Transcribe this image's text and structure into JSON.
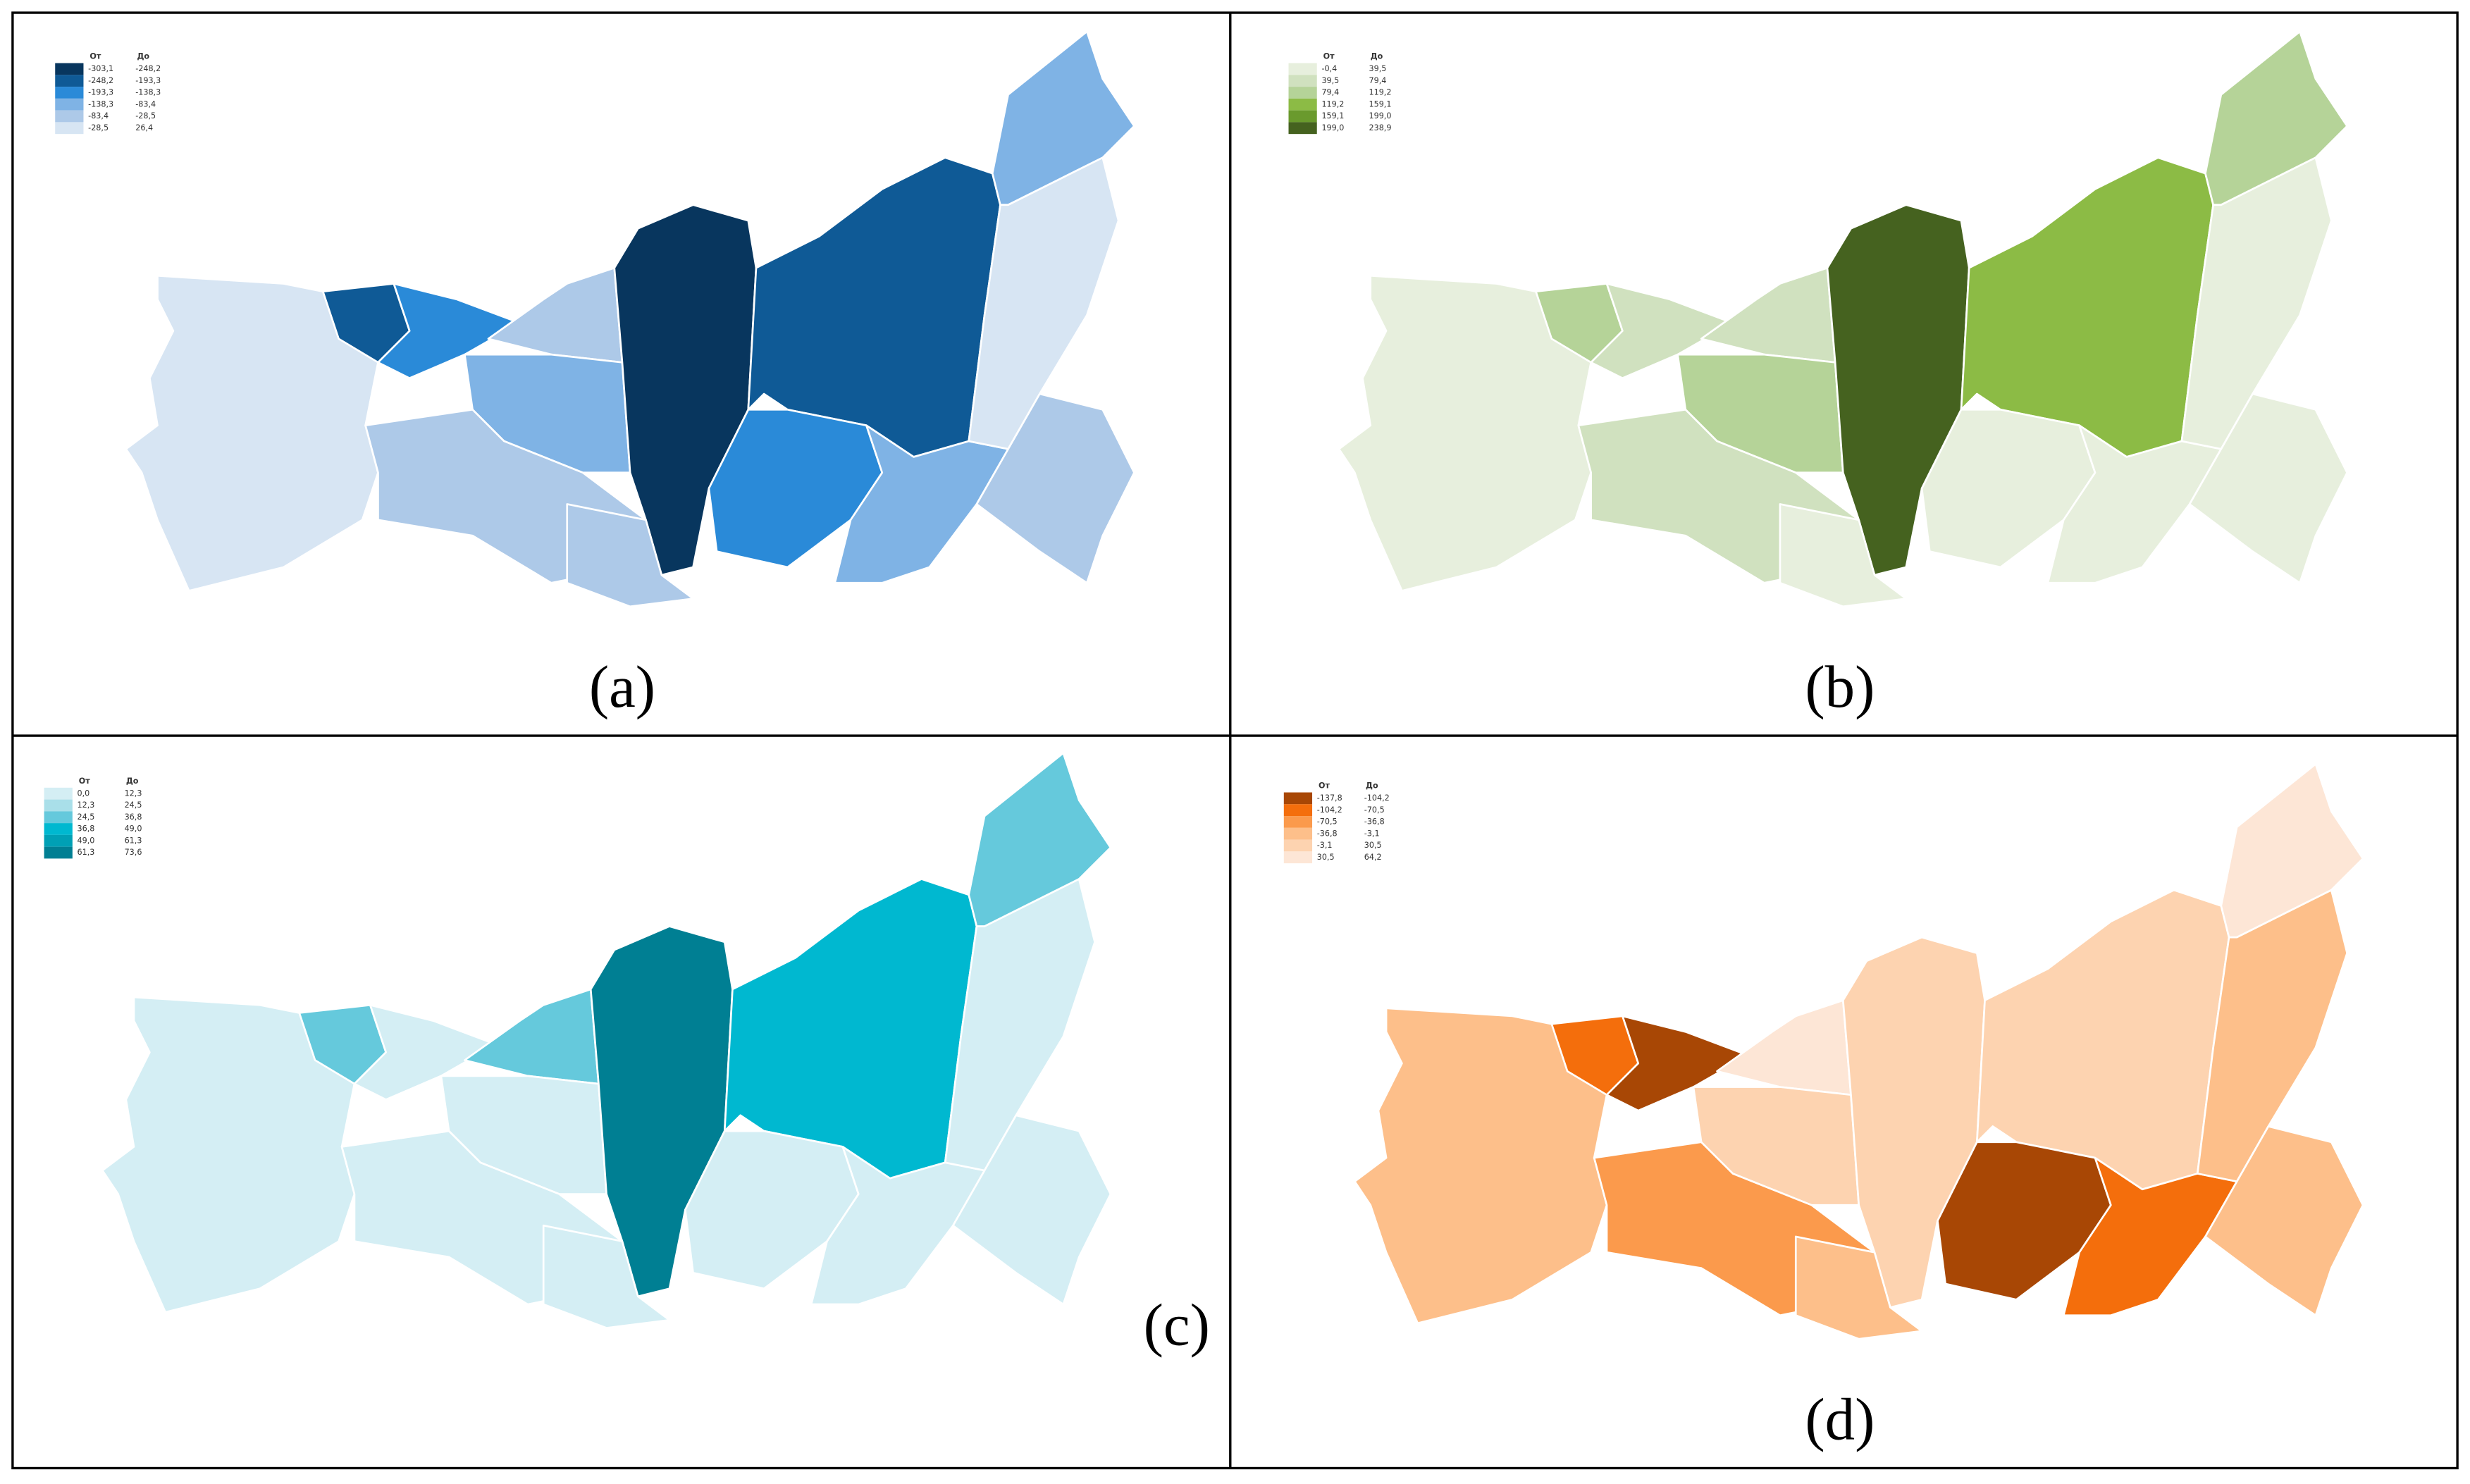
{
  "panels": [
    {
      "label": "(a)",
      "legend": {
        "headers": [
          "От",
          "До"
        ],
        "rows": [
          {
            "from": "-303,1",
            "to": "-248,2",
            "color": "#08365e"
          },
          {
            "from": "-248,2",
            "to": "-193,3",
            "color": "#0f5a96"
          },
          {
            "from": "-193,3",
            "to": "-138,3",
            "color": "#2a8ad8"
          },
          {
            "from": "-138,3",
            "to": "-83,4",
            "color": "#7fb3e5"
          },
          {
            "from": "-83,4",
            "to": "-28,5",
            "color": "#adc9e8"
          },
          {
            "from": "-28,5",
            "to": "26,4",
            "color": "#d7e5f3"
          }
        ]
      }
    },
    {
      "label": "(b)",
      "legend": {
        "headers": [
          "От",
          "До"
        ],
        "rows": [
          {
            "from": "-0,4",
            "to": "39,5",
            "color": "#e7efdd"
          },
          {
            "from": "39,5",
            "to": "79,4",
            "color": "#d0e1bf"
          },
          {
            "from": "79,4",
            "to": "119,2",
            "color": "#b5d398"
          },
          {
            "from": "119,2",
            "to": "159,1",
            "color": "#8cbb45"
          },
          {
            "from": "159,1",
            "to": "199,0",
            "color": "#6a9a2d"
          },
          {
            "from": "199,0",
            "to": "238,9",
            "color": "#45621f"
          }
        ]
      }
    },
    {
      "label": "(c)",
      "legend": {
        "headers": [
          "От",
          "До"
        ],
        "rows": [
          {
            "from": "0,0",
            "to": "12,3",
            "color": "#d4eef4"
          },
          {
            "from": "12,3",
            "to": "24,5",
            "color": "#a9dfe9"
          },
          {
            "from": "24,5",
            "to": "36,8",
            "color": "#65c9dc"
          },
          {
            "from": "36,8",
            "to": "49,0",
            "color": "#00b8d0"
          },
          {
            "from": "49,0",
            "to": "61,3",
            "color": "#00a0b5"
          },
          {
            "from": "61,3",
            "to": "73,6",
            "color": "#007f93"
          }
        ]
      }
    },
    {
      "label": "(d)",
      "legend": {
        "headers": [
          "От",
          "До"
        ],
        "rows": [
          {
            "from": "-137,8",
            "to": "-104,2",
            "color": "#a84705"
          },
          {
            "from": "-104,2",
            "to": "-70,5",
            "color": "#f46e0c"
          },
          {
            "from": "-70,5",
            "to": "-36,8",
            "color": "#fb9a4c"
          },
          {
            "from": "-36,8",
            "to": "-3,1",
            "color": "#fdbf8a"
          },
          {
            "from": "-3,1",
            "to": "30,5",
            "color": "#fdd3b0"
          },
          {
            "from": "30,5",
            "to": "64,2",
            "color": "#fde6d6"
          }
        ]
      }
    }
  ]
}
